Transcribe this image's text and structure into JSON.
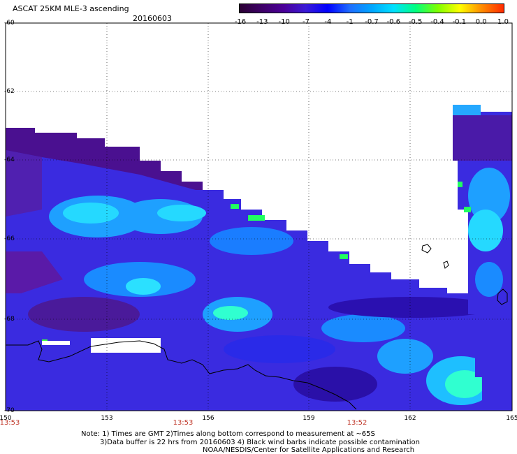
{
  "header": {
    "title": "ASCAT 25KM MLE-3 ascending",
    "date": "20160603"
  },
  "colorbar": {
    "labels": [
      "-16",
      "-13",
      "-10",
      "-7",
      "-4",
      "-1",
      "-0.7",
      "-0.6",
      "-0.5",
      "-0.4",
      "-0.1",
      "0.0",
      "1.0"
    ],
    "colors": [
      "#2a0033",
      "#3d0066",
      "#4b0098",
      "#3a1ad6",
      "#0000ff",
      "#1f6dff",
      "#00a6ff",
      "#00e0ff",
      "#00ff7f",
      "#7fff00",
      "#ffff00",
      "#ff8c00",
      "#ff2a00"
    ]
  },
  "axes": {
    "lat_labels": [
      "-60",
      "-62",
      "-64",
      "-66",
      "-68",
      "-70"
    ],
    "lon_labels": [
      "150",
      "153",
      "156",
      "159",
      "162",
      "165"
    ]
  },
  "times": [
    "13:53",
    "13:53",
    "13:52"
  ],
  "notes": {
    "line1": "Note: 1) Times are GMT 2)Times along bottom correspond to measurement at ~65S",
    "line2": "3)Data buffer is 22 hrs from 20160603 4) Black wind barbs indicate possible contamination",
    "line3": "NOAA/NESDIS/Center for Satellite Applications and Research"
  }
}
